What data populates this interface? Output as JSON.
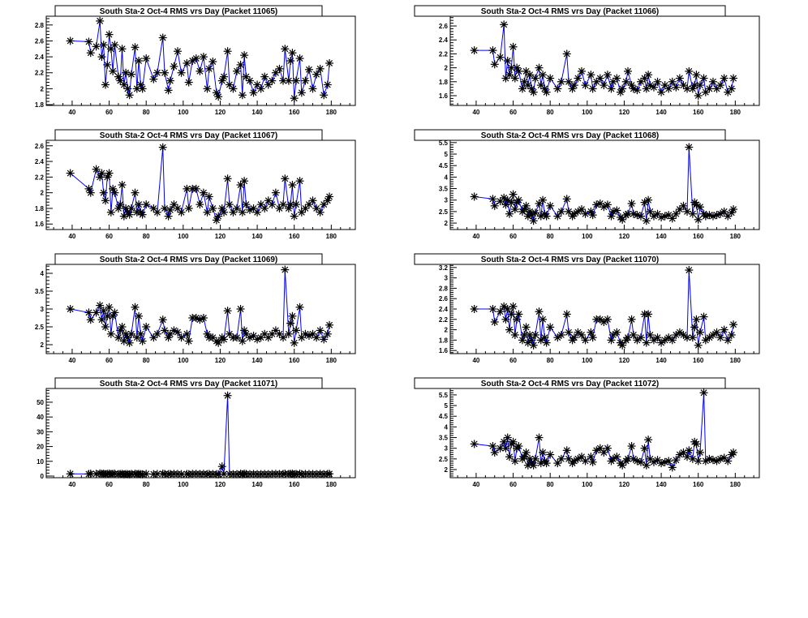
{
  "chart_data": [
    {
      "type": "scatter",
      "title": "South Sta-2 Oct-4 RMS vrs Day (Packet 11065)",
      "xlim": [
        26,
        193
      ],
      "ylim": [
        1.79,
        2.91
      ],
      "xticks": [
        40,
        60,
        80,
        100,
        120,
        140,
        160,
        180
      ],
      "yticks": [
        "1.8",
        "2",
        "2.2",
        "2.4",
        "2.6",
        "2.8"
      ],
      "values": [
        2.6,
        2.59,
        2.45,
        2.53,
        2.85,
        2.4,
        2.55,
        2.05,
        2.3,
        2.68,
        2.5,
        2.22,
        2.55,
        2.15,
        2.1,
        2.5,
        2.05,
        2.2,
        2.0,
        1.92,
        2.18,
        2.52,
        2.0,
        2.35,
        2.05,
        2.0,
        2.38,
        2.12,
        2.2,
        2.64,
        2.2,
        1.98,
        2.1,
        2.28,
        2.47,
        2.2,
        2.32,
        2.08,
        2.35,
        2.38,
        2.22,
        2.4,
        2.0,
        2.25,
        2.34,
        1.95,
        1.9,
        2.1,
        2.15,
        2.47,
        2.05,
        2.0,
        2.22,
        2.3,
        1.92,
        2.42,
        2.15,
        2.1,
        1.95,
        2.05,
        2.0,
        2.15,
        2.05,
        2.1,
        2.2,
        2.25,
        2.1,
        2.5,
        2.1,
        2.35,
        2.45,
        1.88,
        2.1,
        2.38,
        1.95,
        2.1,
        2.24,
        2.0,
        2.18,
        2.25,
        1.92,
        2.05,
        2.32
      ]
    },
    {
      "type": "scatter",
      "title": "South Sta-2 Oct-4 RMS vrs Day (Packet 11066)",
      "xlim": [
        26,
        193
      ],
      "ylim": [
        1.46,
        2.74
      ],
      "xticks": [
        40,
        60,
        80,
        100,
        120,
        140,
        160,
        180
      ],
      "yticks": [
        "1.6",
        "1.8",
        "2",
        "2.2",
        "2.4",
        "2.6"
      ],
      "values": [
        2.25,
        2.25,
        2.05,
        2.15,
        2.62,
        1.85,
        2.1,
        1.9,
        2.0,
        2.3,
        1.85,
        2.0,
        1.95,
        1.7,
        1.8,
        1.95,
        1.75,
        1.9,
        1.7,
        1.65,
        1.85,
        2.0,
        1.75,
        1.9,
        1.7,
        1.65,
        1.85,
        1.7,
        1.8,
        2.2,
        1.8,
        1.7,
        1.75,
        1.85,
        1.95,
        1.75,
        1.9,
        1.7,
        1.8,
        1.85,
        1.75,
        1.9,
        1.7,
        1.8,
        1.85,
        1.65,
        1.7,
        1.8,
        1.95,
        1.75,
        1.7,
        1.68,
        1.8,
        1.85,
        1.7,
        1.9,
        1.75,
        1.72,
        1.8,
        1.65,
        1.75,
        1.7,
        1.8,
        1.72,
        1.85,
        1.75,
        1.7,
        1.95,
        1.7,
        1.75,
        1.9,
        1.6,
        1.75,
        1.85,
        1.65,
        1.7,
        1.8,
        1.7,
        1.75,
        1.85,
        1.65,
        1.7,
        1.85
      ]
    },
    {
      "type": "scatter",
      "title": "South Sta-2 Oct-4 RMS vrs Day (Packet 11067)",
      "xlim": [
        26,
        193
      ],
      "ylim": [
        1.53,
        2.67
      ],
      "xticks": [
        40,
        60,
        80,
        100,
        120,
        140,
        160,
        180
      ],
      "yticks": [
        "1.6",
        "1.8",
        "2",
        "2.2",
        "2.4",
        "2.6"
      ],
      "values": [
        2.25,
        2.05,
        2.0,
        2.3,
        2.2,
        2.25,
        2.0,
        1.9,
        2.2,
        2.25,
        1.75,
        2.05,
        2.0,
        1.8,
        1.85,
        2.1,
        1.7,
        1.8,
        1.75,
        1.72,
        1.8,
        2.0,
        1.75,
        1.85,
        1.75,
        1.72,
        1.85,
        1.8,
        1.75,
        2.58,
        1.8,
        1.7,
        1.78,
        1.85,
        1.8,
        1.75,
        2.05,
        1.8,
        2.05,
        2.05,
        1.85,
        2.0,
        1.75,
        1.95,
        1.8,
        1.65,
        1.7,
        1.8,
        1.75,
        2.18,
        1.85,
        1.75,
        1.8,
        2.1,
        1.75,
        2.15,
        1.85,
        1.78,
        1.8,
        1.75,
        1.85,
        1.8,
        1.9,
        1.85,
        2.0,
        1.8,
        1.85,
        2.18,
        1.8,
        1.85,
        2.1,
        1.7,
        1.85,
        2.15,
        1.75,
        1.8,
        1.85,
        1.9,
        1.8,
        1.75,
        1.85,
        1.9,
        1.95
      ]
    },
    {
      "type": "scatter",
      "title": "South Sta-2 Oct-4 RMS vrs Day (Packet 11068)",
      "xlim": [
        26,
        193
      ],
      "ylim": [
        1.72,
        5.6
      ],
      "xticks": [
        40,
        60,
        80,
        100,
        120,
        140,
        160,
        180
      ],
      "yticks": [
        "2",
        "2.5",
        "3",
        "3.5",
        "4",
        "4.5",
        "5",
        "5.5"
      ],
      "values": [
        3.15,
        3.05,
        2.75,
        2.95,
        3.1,
        2.8,
        3.0,
        2.4,
        2.9,
        3.25,
        2.6,
        2.9,
        3.0,
        2.5,
        2.6,
        2.75,
        2.3,
        2.5,
        2.35,
        2.1,
        2.45,
        2.85,
        2.3,
        3.0,
        2.4,
        2.3,
        2.75,
        2.3,
        2.5,
        3.05,
        2.5,
        2.3,
        2.4,
        2.5,
        2.6,
        2.4,
        2.5,
        2.35,
        2.8,
        2.85,
        2.7,
        2.8,
        2.3,
        2.5,
        2.55,
        2.25,
        2.15,
        2.35,
        2.4,
        2.85,
        2.4,
        2.35,
        2.3,
        2.9,
        2.1,
        3.0,
        2.5,
        2.3,
        2.4,
        2.25,
        2.3,
        2.35,
        2.2,
        2.4,
        2.6,
        2.75,
        2.5,
        5.3,
        2.4,
        2.9,
        2.8,
        2.15,
        2.7,
        2.4,
        2.3,
        2.35,
        2.3,
        2.35,
        2.4,
        2.5,
        2.3,
        2.45,
        2.6
      ]
    },
    {
      "type": "scatter",
      "title": "South Sta-2 Oct-4 RMS vrs Day (Packet 11069)",
      "xlim": [
        26,
        193
      ],
      "ylim": [
        1.75,
        4.25
      ],
      "xticks": [
        40,
        60,
        80,
        100,
        120,
        140,
        160,
        180
      ],
      "yticks": [
        "2",
        "2.5",
        "3",
        "3.5",
        "4"
      ],
      "values": [
        3.0,
        2.9,
        2.7,
        2.9,
        3.1,
        2.7,
        2.95,
        2.5,
        2.8,
        3.05,
        2.3,
        2.8,
        2.9,
        2.2,
        2.4,
        2.5,
        2.1,
        2.3,
        2.2,
        2.05,
        2.3,
        3.05,
        2.2,
        2.8,
        2.3,
        2.1,
        2.5,
        2.2,
        2.3,
        2.7,
        2.4,
        2.2,
        2.3,
        2.4,
        2.35,
        2.2,
        2.3,
        2.1,
        2.75,
        2.75,
        2.7,
        2.75,
        2.3,
        2.2,
        2.2,
        2.1,
        2.05,
        2.2,
        2.15,
        2.95,
        2.3,
        2.2,
        2.2,
        3.0,
        2.1,
        2.4,
        2.3,
        2.2,
        2.25,
        2.15,
        2.2,
        2.3,
        2.2,
        2.3,
        2.4,
        2.3,
        2.2,
        4.1,
        2.3,
        2.6,
        2.8,
        2.05,
        2.4,
        3.05,
        2.2,
        2.3,
        2.25,
        2.3,
        2.2,
        2.4,
        2.15,
        2.3,
        2.55
      ]
    },
    {
      "type": "scatter",
      "title": "South Sta-2 Oct-4 RMS vrs Day (Packet 11070)",
      "xlim": [
        26,
        193
      ],
      "ylim": [
        1.54,
        3.26
      ],
      "xticks": [
        40,
        60,
        80,
        100,
        120,
        140,
        160,
        180
      ],
      "yticks": [
        "1.6",
        "1.8",
        "2",
        "2.2",
        "2.4",
        "2.6",
        "2.8",
        "3",
        "3.2"
      ],
      "values": [
        2.4,
        2.4,
        2.15,
        2.35,
        2.45,
        2.2,
        2.4,
        2.0,
        2.3,
        2.45,
        1.9,
        2.2,
        2.3,
        1.8,
        1.9,
        2.05,
        1.75,
        1.9,
        1.8,
        1.7,
        1.9,
        2.35,
        1.8,
        2.2,
        1.85,
        1.75,
        2.05,
        1.85,
        1.9,
        2.3,
        1.95,
        1.8,
        1.85,
        1.95,
        1.9,
        1.8,
        1.95,
        1.85,
        2.2,
        2.2,
        2.15,
        2.2,
        1.8,
        1.9,
        1.95,
        1.75,
        1.7,
        1.8,
        1.85,
        2.2,
        1.9,
        1.8,
        1.85,
        2.3,
        1.75,
        2.3,
        1.9,
        1.8,
        1.85,
        1.75,
        1.8,
        1.85,
        1.8,
        1.9,
        1.95,
        1.9,
        1.85,
        3.15,
        1.85,
        2.05,
        2.2,
        1.7,
        1.95,
        2.25,
        1.8,
        1.85,
        1.9,
        1.95,
        1.85,
        2.0,
        1.8,
        1.9,
        2.1
      ]
    },
    {
      "type": "scatter",
      "title": "South Sta-2 Oct-4 RMS vrs Day (Packet 11071)",
      "xlim": [
        26,
        193
      ],
      "ylim": [
        -1.1,
        59.3
      ],
      "xticks": [
        40,
        60,
        80,
        100,
        120,
        140,
        160,
        180
      ],
      "yticks": [
        "0",
        "10",
        "20",
        "30",
        "40",
        "50"
      ],
      "values": [
        1.5,
        1.4,
        1.6,
        1.5,
        1.8,
        1.5,
        1.6,
        1.3,
        1.5,
        1.7,
        1.4,
        1.5,
        1.6,
        1.3,
        1.4,
        1.5,
        1.2,
        1.4,
        1.3,
        1.2,
        1.4,
        1.6,
        1.3,
        1.5,
        1.3,
        1.2,
        1.5,
        1.3,
        1.4,
        1.6,
        1.4,
        1.3,
        1.4,
        1.5,
        1.4,
        1.3,
        1.4,
        1.3,
        1.5,
        1.5,
        1.4,
        1.5,
        1.3,
        1.4,
        1.4,
        1.3,
        1.2,
        6.5,
        1.4,
        54.5,
        1.4,
        1.3,
        1.3,
        1.6,
        1.2,
        1.6,
        1.4,
        1.3,
        1.4,
        1.3,
        1.3,
        1.4,
        1.3,
        1.4,
        1.5,
        1.4,
        1.4,
        1.6,
        1.4,
        1.5,
        1.6,
        1.2,
        1.4,
        1.6,
        1.3,
        1.4,
        1.4,
        1.4,
        1.3,
        1.5,
        1.3,
        1.4,
        1.5
      ]
    },
    {
      "type": "scatter",
      "title": "South Sta-2 Oct-4 RMS vrs Day (Packet 11072)",
      "xlim": [
        26,
        193
      ],
      "ylim": [
        1.62,
        5.8
      ],
      "xticks": [
        40,
        60,
        80,
        100,
        120,
        140,
        160,
        180
      ],
      "yticks": [
        "2",
        "2.5",
        "3",
        "3.5",
        "4",
        "4.5",
        "5",
        "5.5"
      ],
      "values": [
        3.2,
        3.1,
        2.8,
        3.0,
        3.3,
        3.0,
        3.5,
        2.6,
        3.2,
        3.3,
        2.4,
        3.0,
        3.1,
        2.5,
        2.6,
        2.8,
        2.2,
        2.5,
        2.3,
        2.2,
        2.5,
        3.5,
        2.3,
        2.8,
        2.4,
        2.3,
        2.7,
        2.3,
        2.5,
        2.9,
        2.5,
        2.3,
        2.4,
        2.5,
        2.6,
        2.4,
        2.6,
        2.35,
        2.9,
        3.0,
        2.8,
        3.0,
        2.4,
        2.5,
        2.6,
        2.3,
        2.2,
        2.4,
        2.5,
        3.1,
        2.5,
        2.4,
        2.35,
        3.0,
        2.2,
        3.4,
        2.5,
        2.35,
        2.45,
        2.3,
        2.35,
        2.4,
        2.1,
        2.45,
        2.7,
        2.8,
        2.6,
        2.9,
        2.5,
        3.3,
        3.2,
        2.4,
        2.8,
        5.6,
        2.4,
        2.5,
        2.45,
        2.4,
        2.5,
        2.55,
        2.4,
        2.7,
        2.8
      ]
    }
  ],
  "x_days": [
    39,
    49,
    50,
    53,
    55,
    56,
    57,
    58,
    59,
    60,
    61,
    62,
    63,
    65,
    66,
    67,
    68,
    69,
    70,
    71,
    72,
    74,
    75,
    76,
    77,
    78,
    80,
    84,
    86,
    89,
    90,
    92,
    93,
    95,
    97,
    99,
    102,
    103,
    105,
    107,
    109,
    111,
    113,
    114,
    116,
    118,
    119,
    121,
    122,
    124,
    125,
    127,
    129,
    131,
    132,
    133,
    134,
    136,
    138,
    140,
    142,
    144,
    146,
    148,
    150,
    152,
    154,
    155,
    157,
    158,
    159,
    160,
    161,
    163,
    164,
    166,
    168,
    170,
    172,
    174,
    176,
    178,
    179
  ],
  "colors": {
    "line": "#0000ff",
    "marker": "#000000",
    "frame": "#000000"
  }
}
